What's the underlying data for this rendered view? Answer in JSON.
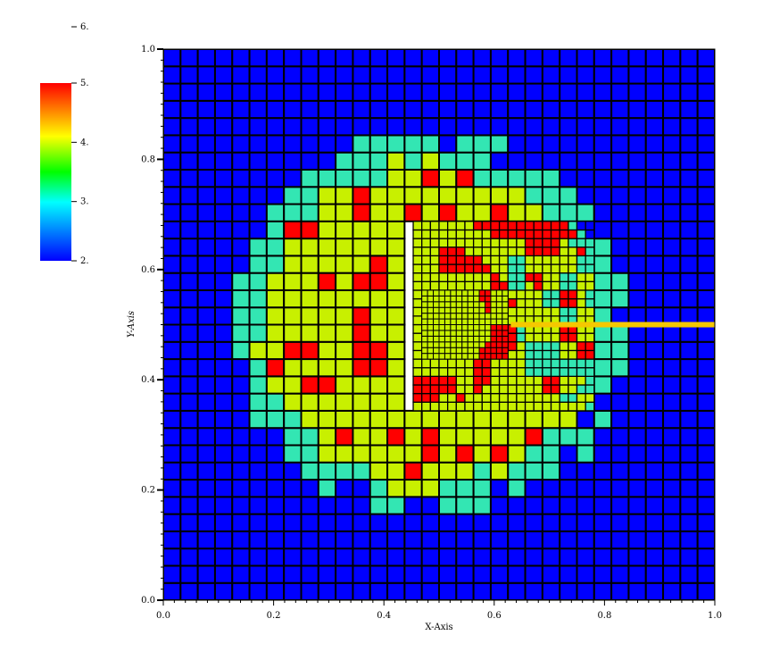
{
  "chart_data": {
    "type": "heatmap",
    "title": "",
    "xlabel": "X-Axis",
    "ylabel": "Y-Axis",
    "xlim": [
      0.0,
      1.0
    ],
    "ylim": [
      0.0,
      1.0
    ],
    "xticks": [
      "0.0",
      "0.2",
      "0.4",
      "0.6",
      "0.8",
      "1.0"
    ],
    "yticks": [
      "0.0",
      "0.2",
      "0.4",
      "0.6",
      "0.8",
      "1.0"
    ],
    "colorbar": {
      "ticks": [
        "2.",
        "3.",
        "4.",
        "5."
      ],
      "max_label": "6.",
      "range": [
        2,
        5
      ],
      "colors": [
        "#0000ff",
        "#00ffff",
        "#00ff00",
        "#ffff00",
        "#ff0000"
      ]
    },
    "grid": {
      "base_resolution": 32,
      "refined_region": {
        "x": [
          0.453,
          0.78
        ],
        "y": [
          0.34,
          0.69
        ],
        "resolution": 64
      },
      "finest_region": {
        "x": [
          0.47,
          0.63
        ],
        "y": [
          0.44,
          0.56
        ],
        "resolution": 96
      }
    },
    "field": {
      "background_value": 2.0,
      "blob_center": [
        0.485,
        0.5
      ],
      "blob_radius": 0.355,
      "value_bands": [
        {
          "level": "low",
          "value": 2.0,
          "color": "#0000ff"
        },
        {
          "level": "edge",
          "value": 3.2,
          "color": "#33e6b3"
        },
        {
          "level": "mid",
          "value": 4.0,
          "color": "#c8f000"
        },
        {
          "level": "high",
          "value": 5.0,
          "color": "#ff0000"
        }
      ]
    },
    "highlight_line": {
      "y": 0.5,
      "x": [
        0.63,
        1.0
      ],
      "color": "#f5c800"
    }
  }
}
